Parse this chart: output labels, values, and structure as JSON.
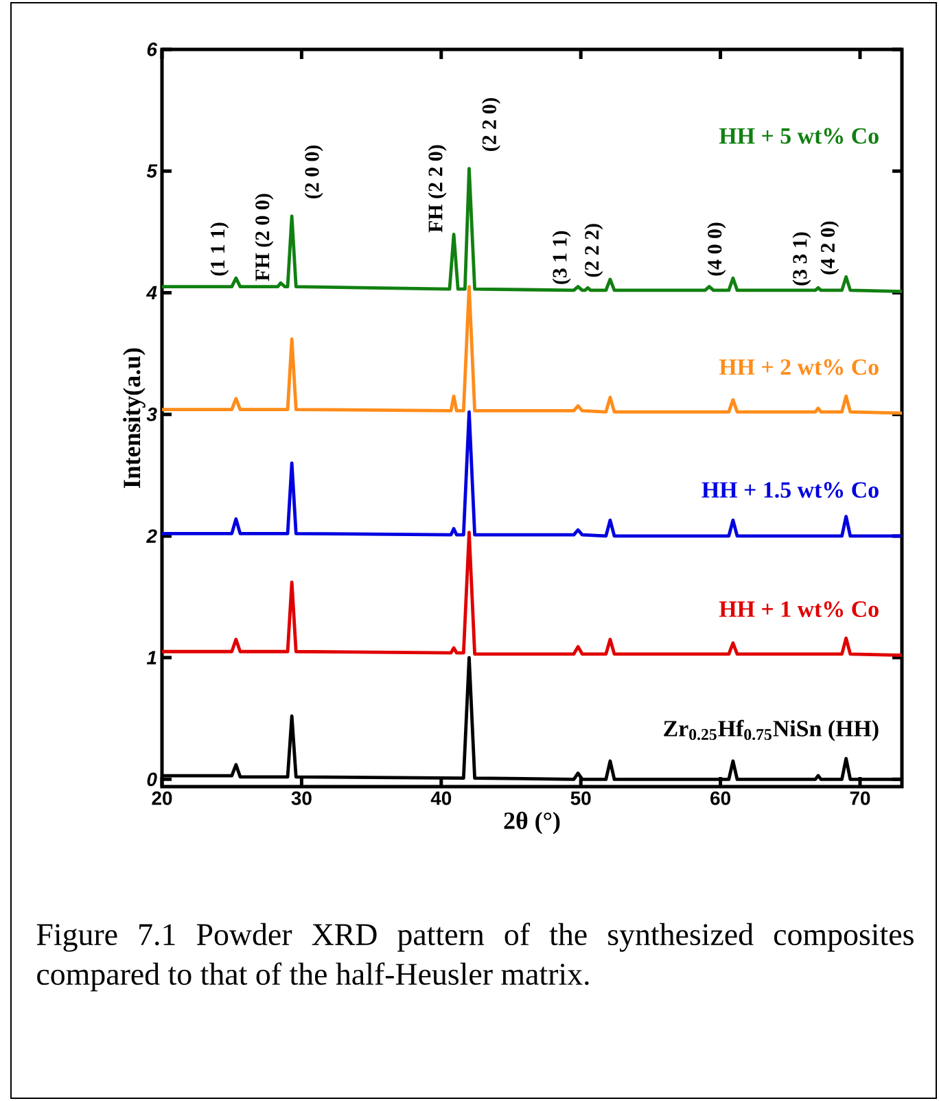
{
  "chart_data": {
    "type": "line",
    "xlabel": "2θ (°)",
    "ylabel": "Intensity(a.u)",
    "xlim": [
      20,
      73
    ],
    "ylim": [
      -0.06,
      6
    ],
    "xticks": [
      20,
      30,
      40,
      50,
      60,
      70
    ],
    "yticks": [
      0,
      1,
      2,
      3,
      4,
      5,
      6
    ],
    "grid": false,
    "legend": false,
    "marker": "none",
    "line_style": "solid",
    "series": [
      {
        "name": "Zr$_{0.25}$Hf$_{0.75}$NiSn (HH)",
        "color": "#000000",
        "x": [
          20,
          25.0,
          25.3,
          25.6,
          29.0,
          29.3,
          29.6,
          41.6,
          42.0,
          42.4,
          49.5,
          49.8,
          50.1,
          51.8,
          52.1,
          52.4,
          60.6,
          60.9,
          61.2,
          66.8,
          67.0,
          67.2,
          68.7,
          69.0,
          69.3,
          73
        ],
        "values": [
          0.03,
          0.03,
          0.12,
          0.02,
          0.02,
          0.52,
          0.02,
          0.01,
          1.0,
          0.01,
          0.0,
          0.05,
          0.0,
          0.0,
          0.15,
          0.0,
          0.0,
          0.15,
          0.0,
          0.0,
          0.03,
          0.0,
          0.0,
          0.17,
          0.0,
          0.0
        ]
      },
      {
        "name": "HH + 1 wt% Co",
        "color": "#e00000",
        "x": [
          20,
          25.0,
          25.3,
          25.6,
          29.0,
          29.3,
          29.6,
          40.7,
          40.9,
          41.1,
          41.6,
          42.0,
          42.4,
          49.5,
          49.8,
          50.1,
          51.8,
          52.1,
          52.4,
          60.6,
          60.9,
          61.2,
          68.7,
          69.0,
          69.3,
          73
        ],
        "values": [
          1.05,
          1.05,
          1.15,
          1.05,
          1.05,
          1.62,
          1.05,
          1.04,
          1.08,
          1.04,
          1.04,
          2.03,
          1.03,
          1.03,
          1.09,
          1.03,
          1.03,
          1.15,
          1.03,
          1.03,
          1.12,
          1.03,
          1.03,
          1.16,
          1.03,
          1.02
        ]
      },
      {
        "name": "HH + 1.5 wt% Co",
        "color": "#0000e0",
        "x": [
          20,
          25.0,
          25.3,
          25.6,
          29.0,
          29.3,
          29.6,
          40.7,
          40.9,
          41.1,
          41.6,
          42.0,
          42.4,
          49.5,
          49.8,
          50.1,
          51.8,
          52.1,
          52.4,
          60.6,
          60.9,
          61.2,
          68.7,
          69.0,
          69.3,
          73
        ],
        "values": [
          2.02,
          2.02,
          2.14,
          2.02,
          2.02,
          2.6,
          2.02,
          2.01,
          2.06,
          2.01,
          2.01,
          3.02,
          2.01,
          2.01,
          2.05,
          2.01,
          2.0,
          2.13,
          2.0,
          2.0,
          2.13,
          2.0,
          2.0,
          2.16,
          2.0,
          2.0
        ]
      },
      {
        "name": "HH + 2 wt% Co",
        "color": "#ff8c1a",
        "x": [
          20,
          25.0,
          25.3,
          25.6,
          29.0,
          29.3,
          29.6,
          40.7,
          40.9,
          41.1,
          41.6,
          42.0,
          42.4,
          49.5,
          49.8,
          50.1,
          51.8,
          52.1,
          52.4,
          60.6,
          60.9,
          61.2,
          66.8,
          67.0,
          67.2,
          68.7,
          69.0,
          69.3,
          73
        ],
        "values": [
          3.04,
          3.04,
          3.13,
          3.04,
          3.04,
          3.62,
          3.04,
          3.03,
          3.15,
          3.03,
          3.03,
          4.05,
          3.03,
          3.03,
          3.07,
          3.03,
          3.02,
          3.14,
          3.02,
          3.02,
          3.12,
          3.02,
          3.02,
          3.05,
          3.02,
          3.02,
          3.15,
          3.02,
          3.01
        ]
      },
      {
        "name": "HH + 5 wt% Co",
        "color": "#118011",
        "x": [
          20,
          25.0,
          25.3,
          25.6,
          28.3,
          28.5,
          28.8,
          29.0,
          29.3,
          29.6,
          40.6,
          40.9,
          41.2,
          41.7,
          42.0,
          42.4,
          49.5,
          49.8,
          50.1,
          50.3,
          50.5,
          50.7,
          51.8,
          52.1,
          52.4,
          58.9,
          59.2,
          59.5,
          60.6,
          60.9,
          61.2,
          66.8,
          67.0,
          67.2,
          68.7,
          69.0,
          69.3,
          73
        ],
        "values": [
          4.05,
          4.05,
          4.12,
          4.05,
          4.05,
          4.08,
          4.05,
          4.05,
          4.63,
          4.05,
          4.03,
          4.48,
          4.03,
          4.03,
          5.02,
          4.03,
          4.02,
          4.05,
          4.02,
          4.02,
          4.04,
          4.02,
          4.02,
          4.11,
          4.02,
          4.02,
          4.05,
          4.02,
          4.02,
          4.12,
          4.02,
          4.02,
          4.04,
          4.02,
          4.02,
          4.13,
          4.02,
          4.01
        ]
      }
    ],
    "annotations": [
      {
        "text": "(1 1 1)",
        "x": 25.3,
        "y": 4.12
      },
      {
        "text": "FH (2 0 0)",
        "x": 28.5,
        "y": 4.08
      },
      {
        "text": "(2 0 0)",
        "x": 29.3,
        "y": 4.63
      },
      {
        "text": "FH (2 2 0)",
        "x": 40.9,
        "y": 4.48
      },
      {
        "text": "(2 2 0)",
        "x": 42.0,
        "y": 5.02
      },
      {
        "text": "(3 1 1)",
        "x": 49.8,
        "y": 4.05
      },
      {
        "text": "(2 2 2)",
        "x": 52.1,
        "y": 4.11
      },
      {
        "text": "(4 0 0)",
        "x": 60.9,
        "y": 4.12
      },
      {
        "text": "(3 3 1)",
        "x": 67.0,
        "y": 4.04
      },
      {
        "text": "(4 2 0)",
        "x": 69.0,
        "y": 4.13
      },
      "Figure 7.1 Powder XRD pattern of the synthesized composites compared to that of the half-Heusler matrix."
    ]
  }
}
